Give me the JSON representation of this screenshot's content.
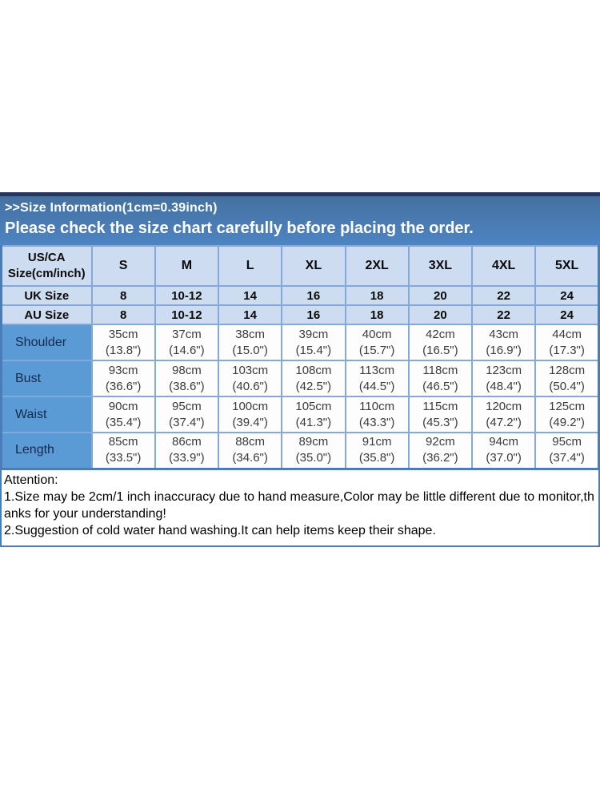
{
  "banner": {
    "line1": ">>Size Information(1cm=0.39inch)",
    "line2": "Please check the size chart carefully before placing the order.",
    "bg_top": "#44719f",
    "bg_bottom": "#4e84c3",
    "top_bar_color": "#26365f"
  },
  "size_table": {
    "corner_header": [
      "US/CA",
      "Size(cm/inch)"
    ],
    "size_columns": [
      "S",
      "M",
      "L",
      "XL",
      "2XL",
      "3XL",
      "4XL",
      "5XL"
    ],
    "region_rows": [
      {
        "label": "UK Size",
        "values": [
          "8",
          "10-12",
          "14",
          "16",
          "18",
          "20",
          "22",
          "24"
        ]
      },
      {
        "label": "AU Size",
        "values": [
          "8",
          "10-12",
          "14",
          "16",
          "18",
          "20",
          "22",
          "24"
        ]
      }
    ],
    "measurement_rows": [
      {
        "label": "Shoulder",
        "cells": [
          [
            "35cm",
            "(13.8\")"
          ],
          [
            "37cm",
            "(14.6\")"
          ],
          [
            "38cm",
            "(15.0\")"
          ],
          [
            "39cm",
            "(15.4\")"
          ],
          [
            "40cm",
            "(15.7\")"
          ],
          [
            "42cm",
            "(16.5\")"
          ],
          [
            "43cm",
            "(16.9\")"
          ],
          [
            "44cm",
            "(17.3\")"
          ]
        ]
      },
      {
        "label": "Bust",
        "cells": [
          [
            "93cm",
            "(36.6\")"
          ],
          [
            "98cm",
            "(38.6\")"
          ],
          [
            "103cm",
            "(40.6\")"
          ],
          [
            "108cm",
            "(42.5\")"
          ],
          [
            "113cm",
            "(44.5\")"
          ],
          [
            "118cm",
            "(46.5\")"
          ],
          [
            "123cm",
            "(48.4\")"
          ],
          [
            "128cm",
            "(50.4\")"
          ]
        ]
      },
      {
        "label": "Waist",
        "cells": [
          [
            "90cm",
            "(35.4\")"
          ],
          [
            "95cm",
            "(37.4\")"
          ],
          [
            "100cm",
            "(39.4\")"
          ],
          [
            "105cm",
            "(41.3\")"
          ],
          [
            "110cm",
            "(43.3\")"
          ],
          [
            "115cm",
            "(45.3\")"
          ],
          [
            "120cm",
            "(47.2\")"
          ],
          [
            "125cm",
            "(49.2\")"
          ]
        ]
      },
      {
        "label": "Length",
        "cells": [
          [
            "85cm",
            "(33.5\")"
          ],
          [
            "86cm",
            "(33.9\")"
          ],
          [
            "88cm",
            "(34.6\")"
          ],
          [
            "89cm",
            "(35.0\")"
          ],
          [
            "91cm",
            "(35.8\")"
          ],
          [
            "92cm",
            "(36.2\")"
          ],
          [
            "94cm",
            "(37.0\")"
          ],
          [
            "95cm",
            "(37.4\")"
          ]
        ]
      }
    ],
    "colors": {
      "header_bg": "#cddcf0",
      "label_bg": "#5b9bd5",
      "border": "#84a9d8",
      "outer_border": "#4a7cb8",
      "data_bg": "#ffffff"
    }
  },
  "attention": {
    "title": "Attention:",
    "items": [
      "1.Size may be 2cm/1 inch inaccuracy due to hand measure,Color may be little different due to monitor,thanks for your understanding!",
      "2.Suggestion of cold water hand washing.It can help items keep their shape."
    ]
  }
}
